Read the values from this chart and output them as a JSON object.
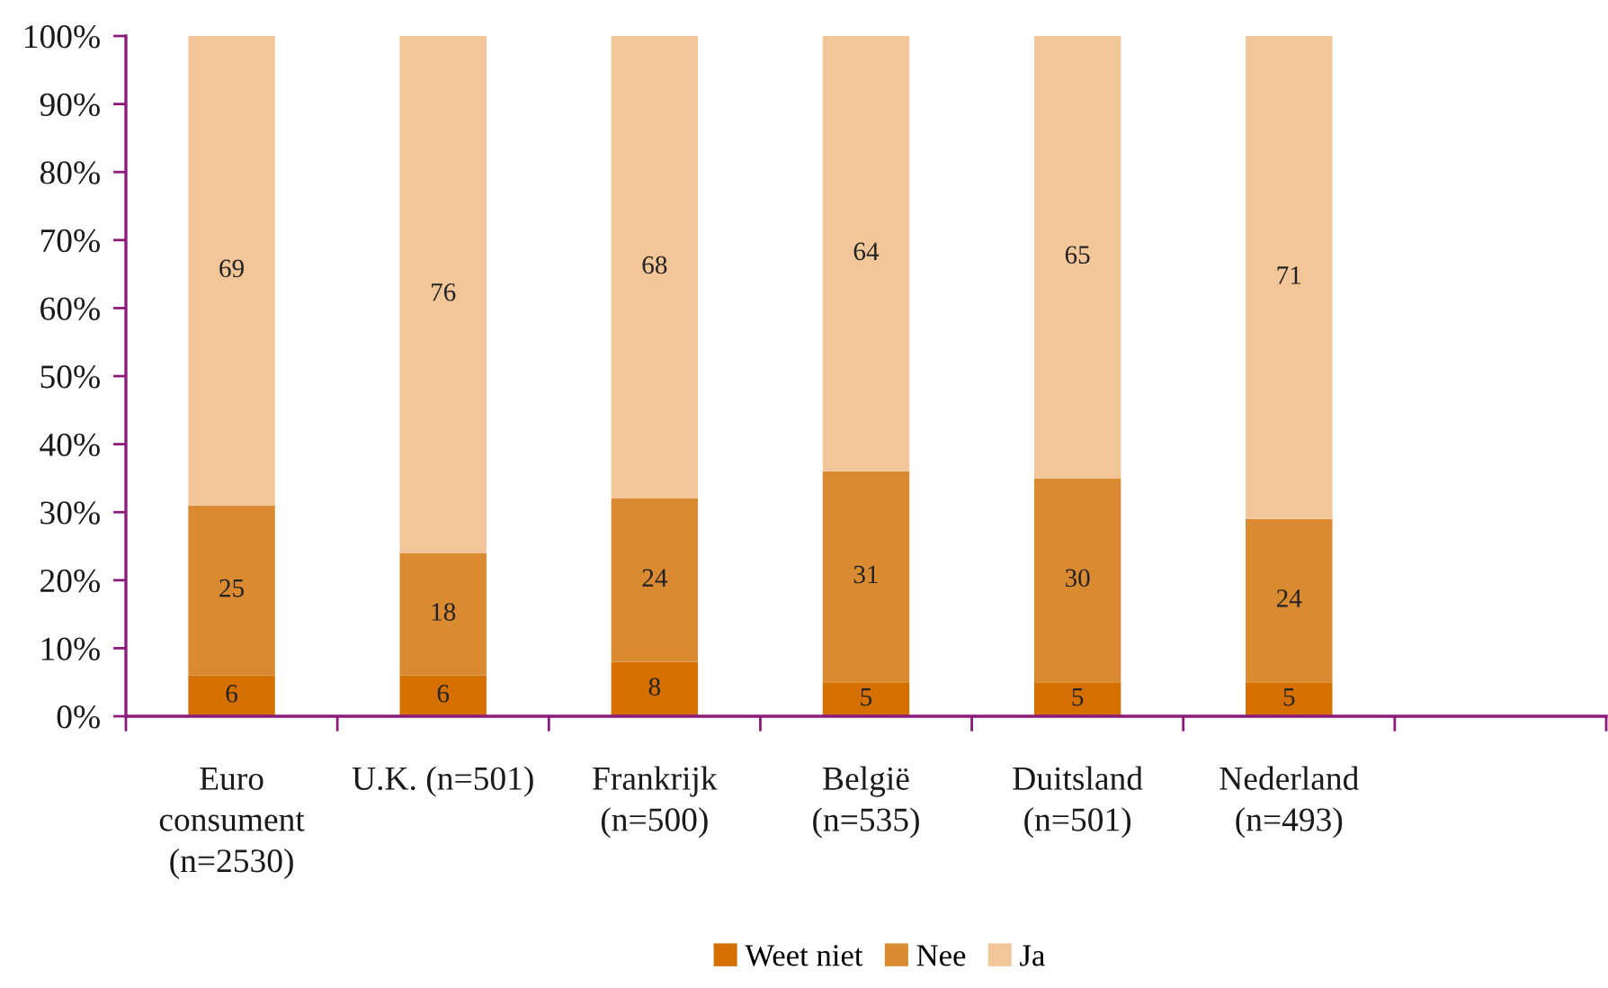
{
  "chart_data": {
    "type": "bar",
    "stacked": true,
    "categories": [
      "Euro\nconsument\n(n=2530)",
      "U.K. (n=501)",
      "Frankrijk\n(n=500)",
      "België\n(n=535)",
      "Duitsland\n(n=501)",
      "Nederland\n(n=493)",
      null
    ],
    "series": [
      {
        "name": "Weet niet",
        "color": "#d46f00",
        "values": [
          6,
          6,
          8,
          5,
          5,
          5,
          null
        ]
      },
      {
        "name": "Nee",
        "color": "#da8a30",
        "values": [
          25,
          18,
          24,
          31,
          30,
          24,
          null
        ]
      },
      {
        "name": "Ja",
        "color": "#f2c698",
        "values": [
          69,
          76,
          68,
          64,
          65,
          71,
          null
        ]
      }
    ],
    "ylim": [
      0,
      100
    ],
    "yticks": [
      {
        "value": 0,
        "label": "0%"
      },
      {
        "value": 10,
        "label": "10%"
      },
      {
        "value": 20,
        "label": "20%"
      },
      {
        "value": 30,
        "label": "30%"
      },
      {
        "value": 40,
        "label": "40%"
      },
      {
        "value": 50,
        "label": "50%"
      },
      {
        "value": 60,
        "label": "60%"
      },
      {
        "value": 70,
        "label": "70%"
      },
      {
        "value": 80,
        "label": "80%"
      },
      {
        "value": 90,
        "label": "90%"
      },
      {
        "value": 100,
        "label": "100%"
      }
    ],
    "data_labels": true,
    "legend": "bottom",
    "grid": false
  }
}
